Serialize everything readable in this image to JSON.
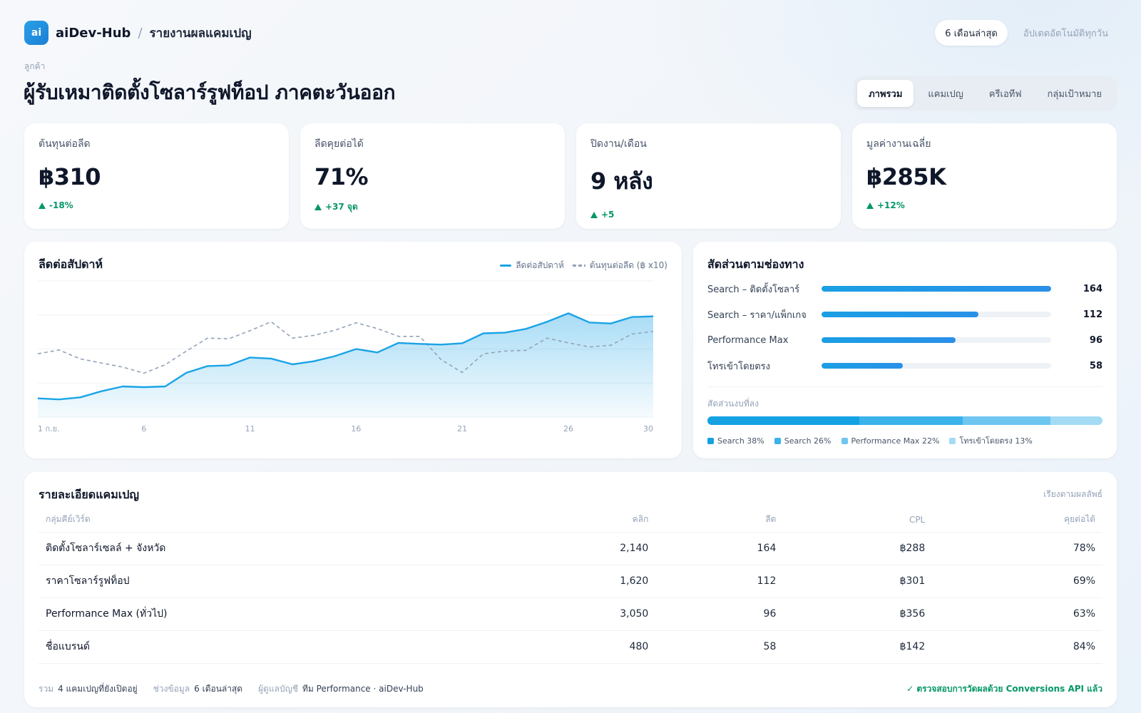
{
  "app": {
    "logo_text": "ai",
    "brand": "aiDev-Hub",
    "separator": "/",
    "page": "รายงานผลแคมเปญ"
  },
  "header": {
    "range_label": "6 เดือนล่าสุด",
    "updated": "อัปเดตอัตโนมัติทุกวัน"
  },
  "client": {
    "label": "ลูกค้า",
    "name": "ผู้รับเหมาติดตั้งโซลาร์รูฟท็อป ภาคตะวันออก"
  },
  "tabs": [
    {
      "label": "ภาพรวม",
      "active": true
    },
    {
      "label": "แคมเปญ",
      "active": false
    },
    {
      "label": "ครีเอทีฟ",
      "active": false
    },
    {
      "label": "กลุ่มเป้าหมาย",
      "active": false
    }
  ],
  "kpis": [
    {
      "label": "ต้นทุนต่อลีด",
      "value": "฿310",
      "delta": "-18%"
    },
    {
      "label": "ลีดคุยต่อได้",
      "value": "71%",
      "delta": "+37 จุด"
    },
    {
      "label": "ปิดงาน/เดือน",
      "value": "9 หลัง",
      "delta": "+5"
    },
    {
      "label": "มูลค่างานเฉลี่ย",
      "value": "฿285K",
      "delta": "+12%"
    }
  ],
  "leads_chart": {
    "title": "ลีดต่อสัปดาห์",
    "legend_leads": "ลีดต่อสัปดาห์",
    "legend_cpl": "ต้นทุนต่อลีด (฿ x10)"
  },
  "chart_data": {
    "type": "area",
    "x": [
      1,
      2,
      3,
      4,
      5,
      6,
      7,
      8,
      9,
      10,
      11,
      12,
      13,
      14,
      15,
      16,
      17,
      18,
      19,
      20,
      21,
      22,
      23,
      24,
      25,
      26,
      27,
      28,
      29,
      30
    ],
    "x_tick_labels": [
      "1 ก.ย.",
      "6",
      "11",
      "16",
      "21",
      "26",
      "30"
    ],
    "x_tick_positions": [
      1,
      6,
      11,
      16,
      21,
      26,
      30
    ],
    "ylim": [
      0,
      40
    ],
    "grid": true,
    "legend": "top-right",
    "series": [
      {
        "name": "ลีดต่อสัปดาห์",
        "style": "solid-area",
        "color": "#1aa3e6",
        "values": [
          5.5,
          5.2,
          5.8,
          7.6,
          9.0,
          8.8,
          9.0,
          13.0,
          15.0,
          15.2,
          17.5,
          17.2,
          15.5,
          16.4,
          17.9,
          20.0,
          19.0,
          21.8,
          21.5,
          21.3,
          21.7,
          24.6,
          24.8,
          25.9,
          28.0,
          30.5,
          27.8,
          27.5,
          29.4,
          29.6
        ]
      },
      {
        "name": "ต้นทุนต่อลีด (฿ x10)",
        "style": "dashed",
        "color": "#94a3b8",
        "values": [
          18.6,
          19.7,
          17.1,
          15.9,
          14.7,
          12.9,
          15.4,
          19.4,
          23.2,
          23.0,
          25.4,
          28.0,
          23.2,
          24.0,
          25.5,
          27.7,
          26.0,
          23.7,
          23.7,
          16.9,
          13.1,
          18.6,
          19.4,
          19.6,
          23.2,
          21.8,
          20.6,
          21.1,
          24.4,
          25.2
        ]
      }
    ]
  },
  "channels": {
    "title": "สัดส่วนตามช่องทาง",
    "max": 164,
    "items": [
      {
        "name": "Search – ติดตั้งโซลาร์",
        "value": 164
      },
      {
        "name": "Search – ราคา/แพ็กเกจ",
        "value": 112
      },
      {
        "name": "Performance Max",
        "value": 96
      },
      {
        "name": "โทรเข้าโดยตรง",
        "value": 58
      }
    ],
    "share_label": "สัดส่วนงบที่ลง",
    "share": [
      {
        "label": "Search 38%",
        "pct": 38,
        "color": "#14a2e3"
      },
      {
        "label": "Search 26%",
        "pct": 26,
        "color": "#3ab2ea"
      },
      {
        "label": "Performance Max 22%",
        "pct": 22,
        "color": "#6ec6f0"
      },
      {
        "label": "โทรเข้าโดยตรง 13%",
        "pct": 13,
        "color": "#a3dbf5"
      }
    ]
  },
  "campaigns": {
    "title": "รายละเอียดแคมเปญ",
    "sort_label": "เรียงตามผลลัพธ์",
    "columns": [
      "กลุ่มคีย์เวิร์ด",
      "คลิก",
      "ลีด",
      "CPL",
      "คุยต่อได้"
    ],
    "rows": [
      [
        "ติดตั้งโซลาร์เซลล์ + จังหวัด",
        "2,140",
        "164",
        "฿288",
        "78%"
      ],
      [
        "ราคาโซลาร์รูฟท็อป",
        "1,620",
        "112",
        "฿301",
        "69%"
      ],
      [
        "Performance Max (ทั่วไป)",
        "3,050",
        "96",
        "฿356",
        "63%"
      ],
      [
        "ชื่อแบรนด์",
        "480",
        "58",
        "฿142",
        "84%"
      ]
    ],
    "footer": {
      "total_key": "รวม",
      "total_val": "4 แคมเปญที่ยังเปิดอยู่",
      "range_key": "ช่วงข้อมูล",
      "range_val": "6 เดือนล่าสุด",
      "owner_key": "ผู้ดูแลบัญชี",
      "owner_val": "ทีม Performance · aiDev-Hub",
      "verified": "✓ ตรวจสอบการวัดผลด้วย Conversions API แล้ว"
    }
  }
}
